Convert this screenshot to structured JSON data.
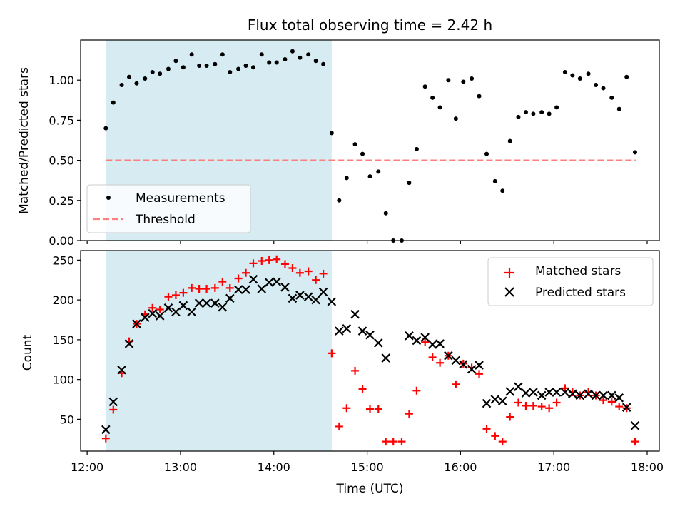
{
  "figure": {
    "title": "Flux total observing time = 2.42 h",
    "xlabel": "Time (UTC)",
    "xticks": [
      "12:00",
      "13:00",
      "14:00",
      "15:00",
      "16:00",
      "17:00",
      "18:00"
    ]
  },
  "chart_data": [
    {
      "type": "scatter",
      "title": "Flux total observing time = 2.42 h",
      "ylabel": "Matched/Predicted stars",
      "ylim": [
        0.0,
        1.25
      ],
      "yticks": [
        "0.00",
        "0.25",
        "0.50",
        "0.75",
        "1.00"
      ],
      "xlim_hours": [
        11.93,
        18.13
      ],
      "shaded_region_hours": [
        12.2,
        14.62
      ],
      "shade_color": "#add8e6",
      "threshold": {
        "name": "Threshold",
        "value": 0.5,
        "color": "#ff7f7f",
        "x_range_hours": [
          12.2,
          17.88
        ]
      },
      "legend": {
        "position": "lower-left",
        "entries": [
          "Measurements",
          "Threshold"
        ]
      },
      "series": [
        {
          "name": "Measurements",
          "color": "#000000",
          "marker": "dot",
          "x": [
            12.2,
            12.28,
            12.37,
            12.45,
            12.53,
            12.62,
            12.7,
            12.78,
            12.87,
            12.95,
            13.03,
            13.12,
            13.2,
            13.28,
            13.37,
            13.45,
            13.53,
            13.62,
            13.7,
            13.78,
            13.87,
            13.95,
            14.03,
            14.12,
            14.2,
            14.28,
            14.37,
            14.45,
            14.53,
            14.62,
            14.7,
            14.78,
            14.87,
            14.95,
            15.03,
            15.12,
            15.2,
            15.28,
            15.37,
            15.45,
            15.53,
            15.62,
            15.7,
            15.78,
            15.87,
            15.95,
            16.03,
            16.12,
            16.2,
            16.28,
            16.37,
            16.45,
            16.53,
            16.62,
            16.7,
            16.78,
            16.87,
            16.95,
            17.03,
            17.12,
            17.2,
            17.28,
            17.37,
            17.45,
            17.53,
            17.62,
            17.7,
            17.78,
            17.87
          ],
          "y": [
            0.7,
            0.86,
            0.97,
            1.02,
            0.98,
            1.01,
            1.05,
            1.04,
            1.07,
            1.12,
            1.08,
            1.16,
            1.09,
            1.09,
            1.1,
            1.16,
            1.05,
            1.07,
            1.09,
            1.08,
            1.16,
            1.11,
            1.11,
            1.13,
            1.18,
            1.14,
            1.16,
            1.12,
            1.1,
            0.67,
            0.25,
            0.39,
            0.6,
            0.54,
            0.4,
            0.43,
            0.17,
            0.0,
            0.0,
            0.36,
            0.57,
            0.96,
            0.89,
            0.83,
            1.0,
            0.76,
            0.99,
            1.01,
            0.9,
            0.54,
            0.37,
            0.31,
            0.62,
            0.77,
            0.8,
            0.79,
            0.8,
            0.79,
            0.83,
            1.05,
            1.03,
            1.01,
            1.04,
            0.97,
            0.95,
            0.89,
            0.82,
            1.02,
            0.55
          ]
        }
      ]
    },
    {
      "type": "scatter",
      "xlabel": "Time (UTC)",
      "ylabel": "Count",
      "ylim": [
        10,
        262
      ],
      "yticks": [
        "50",
        "100",
        "150",
        "200",
        "250"
      ],
      "xlim_hours": [
        11.93,
        18.13
      ],
      "shaded_region_hours": [
        12.2,
        14.62
      ],
      "shade_color": "#add8e6",
      "legend": {
        "position": "top-right",
        "entries": [
          "Matched stars",
          "Predicted stars"
        ]
      },
      "series": [
        {
          "name": "Matched stars",
          "color": "#ff0000",
          "marker": "plus",
          "x": [
            12.2,
            12.28,
            12.37,
            12.45,
            12.53,
            12.62,
            12.7,
            12.78,
            12.87,
            12.95,
            13.03,
            13.12,
            13.2,
            13.28,
            13.37,
            13.45,
            13.53,
            13.62,
            13.7,
            13.78,
            13.87,
            13.95,
            14.03,
            14.12,
            14.2,
            14.28,
            14.37,
            14.45,
            14.53,
            14.62,
            14.7,
            14.78,
            14.87,
            14.95,
            15.03,
            15.12,
            15.2,
            15.28,
            15.37,
            15.45,
            15.53,
            15.62,
            15.7,
            15.78,
            15.87,
            15.95,
            16.03,
            16.12,
            16.2,
            16.28,
            16.37,
            16.45,
            16.53,
            16.62,
            16.7,
            16.78,
            16.87,
            16.95,
            17.03,
            17.12,
            17.2,
            17.28,
            17.37,
            17.45,
            17.53,
            17.62,
            17.7,
            17.78,
            17.87
          ],
          "y": [
            26,
            62,
            108,
            148,
            170,
            182,
            190,
            188,
            204,
            206,
            209,
            215,
            214,
            214,
            215,
            223,
            215,
            227,
            234,
            246,
            249,
            250,
            251,
            245,
            240,
            234,
            236,
            225,
            233,
            133,
            41,
            64,
            111,
            88,
            63,
            63,
            22,
            22,
            22,
            57,
            86,
            147,
            128,
            121,
            130,
            94,
            120,
            115,
            107,
            38,
            29,
            22,
            53,
            71,
            67,
            67,
            66,
            64,
            71,
            89,
            84,
            80,
            84,
            80,
            74,
            72,
            66,
            64,
            22
          ]
        },
        {
          "name": "Predicted stars",
          "color": "#000000",
          "marker": "x",
          "x": [
            12.2,
            12.28,
            12.37,
            12.45,
            12.53,
            12.62,
            12.7,
            12.78,
            12.87,
            12.95,
            13.03,
            13.12,
            13.2,
            13.28,
            13.37,
            13.45,
            13.53,
            13.62,
            13.7,
            13.78,
            13.87,
            13.95,
            14.03,
            14.12,
            14.2,
            14.28,
            14.37,
            14.45,
            14.53,
            14.62,
            14.7,
            14.78,
            14.87,
            14.95,
            15.03,
            15.12,
            15.2,
            15.45,
            15.53,
            15.62,
            15.7,
            15.78,
            15.87,
            15.95,
            16.03,
            16.12,
            16.2,
            16.28,
            16.37,
            16.45,
            16.53,
            16.62,
            16.7,
            16.78,
            16.87,
            16.95,
            17.03,
            17.12,
            17.2,
            17.28,
            17.37,
            17.45,
            17.53,
            17.62,
            17.7,
            17.78,
            17.87
          ],
          "y": [
            37,
            72,
            112,
            145,
            170,
            178,
            183,
            180,
            190,
            185,
            193,
            185,
            196,
            196,
            196,
            191,
            202,
            213,
            213,
            226,
            214,
            222,
            223,
            216,
            202,
            206,
            204,
            200,
            210,
            198,
            161,
            164,
            182,
            161,
            156,
            146,
            127,
            155,
            149,
            153,
            144,
            145,
            130,
            124,
            119,
            113,
            118,
            70,
            75,
            73,
            85,
            91,
            83,
            84,
            80,
            84,
            84,
            84,
            82,
            80,
            82,
            80,
            80,
            80,
            77,
            65,
            42
          ]
        }
      ]
    }
  ]
}
